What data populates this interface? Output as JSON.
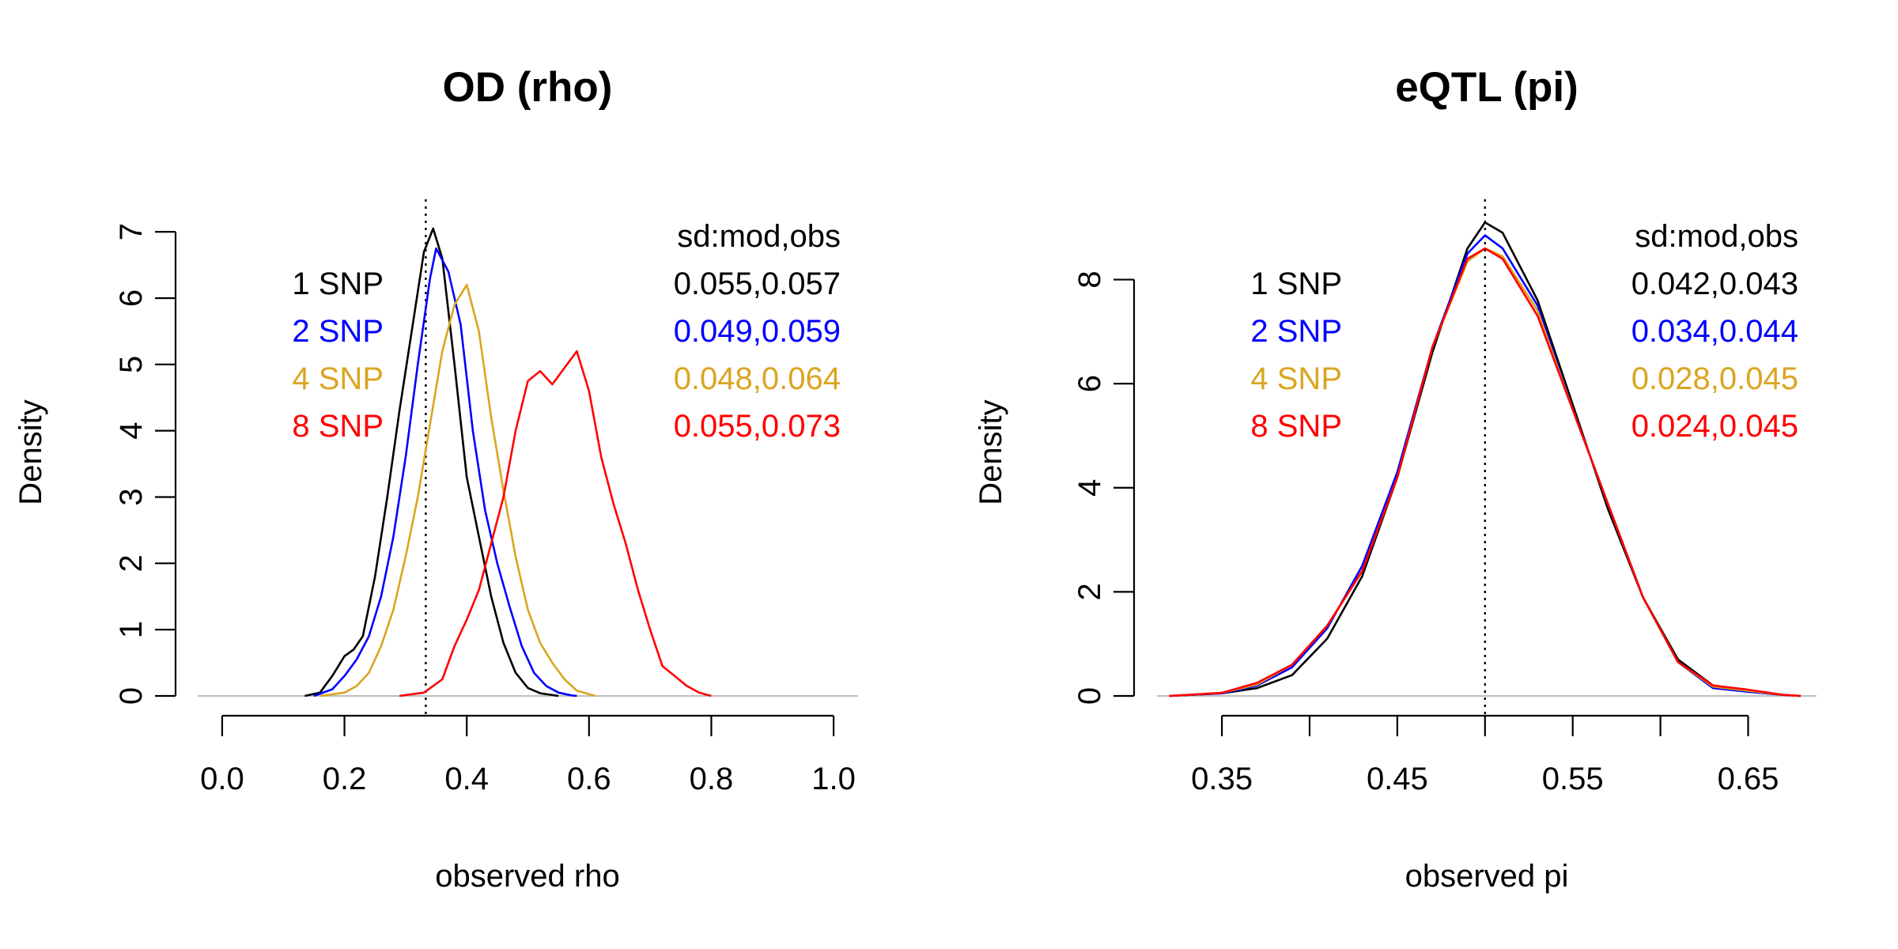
{
  "chart_data": [
    {
      "type": "line",
      "title": "OD (rho)",
      "xlabel": "observed rho",
      "ylabel": "Density",
      "xlim": [
        -0.04,
        1.04
      ],
      "ylim": [
        0,
        7.3
      ],
      "xticks": [
        0.0,
        0.2,
        0.4,
        0.6,
        0.8,
        1.0
      ],
      "xtick_labels": [
        "0.0",
        "0.2",
        "0.4",
        "0.6",
        "0.8",
        "1.0"
      ],
      "yticks": [
        0,
        1,
        2,
        3,
        4,
        5,
        6,
        7
      ],
      "ytick_labels": [
        "0",
        "1",
        "2",
        "3",
        "4",
        "5",
        "6",
        "7"
      ],
      "ref_line_x": 0.333,
      "legend_header": "sd:mod,obs",
      "series": [
        {
          "name": "1 SNP",
          "stat": "0.055,0.057",
          "color": "#000000",
          "x": [
            0.135,
            0.16,
            0.18,
            0.2,
            0.215,
            0.23,
            0.25,
            0.27,
            0.29,
            0.31,
            0.33,
            0.345,
            0.36,
            0.38,
            0.4,
            0.42,
            0.44,
            0.46,
            0.48,
            0.5,
            0.52,
            0.55
          ],
          "y": [
            0,
            0.05,
            0.3,
            0.6,
            0.7,
            0.9,
            1.8,
            3.0,
            4.3,
            5.5,
            6.7,
            7.05,
            6.6,
            5.0,
            3.3,
            2.4,
            1.5,
            0.8,
            0.35,
            0.12,
            0.04,
            0
          ]
        },
        {
          "name": "2 SNP",
          "stat": "0.049,0.059",
          "color": "#0000ff",
          "x": [
            0.15,
            0.18,
            0.2,
            0.22,
            0.24,
            0.26,
            0.28,
            0.3,
            0.32,
            0.34,
            0.35,
            0.37,
            0.39,
            0.41,
            0.43,
            0.45,
            0.47,
            0.49,
            0.51,
            0.53,
            0.55,
            0.57,
            0.58
          ],
          "y": [
            0,
            0.1,
            0.3,
            0.55,
            0.9,
            1.5,
            2.4,
            3.6,
            5.0,
            6.3,
            6.75,
            6.4,
            5.6,
            4.0,
            2.8,
            2.0,
            1.35,
            0.75,
            0.35,
            0.15,
            0.05,
            0.01,
            0
          ]
        },
        {
          "name": "4 SNP",
          "stat": "0.048,0.064",
          "color": "#daa520",
          "x": [
            0.16,
            0.2,
            0.22,
            0.24,
            0.26,
            0.28,
            0.3,
            0.32,
            0.34,
            0.36,
            0.38,
            0.4,
            0.42,
            0.44,
            0.46,
            0.48,
            0.5,
            0.52,
            0.54,
            0.56,
            0.58,
            0.61
          ],
          "y": [
            0,
            0.05,
            0.15,
            0.35,
            0.75,
            1.3,
            2.1,
            3.0,
            4.1,
            5.2,
            5.9,
            6.2,
            5.5,
            4.2,
            3.1,
            2.1,
            1.3,
            0.8,
            0.5,
            0.25,
            0.08,
            0
          ]
        },
        {
          "name": "8 SNP",
          "stat": "0.055,0.073",
          "color": "#ff0000",
          "x": [
            0.29,
            0.33,
            0.36,
            0.38,
            0.4,
            0.42,
            0.44,
            0.46,
            0.48,
            0.5,
            0.52,
            0.54,
            0.56,
            0.58,
            0.6,
            0.62,
            0.64,
            0.66,
            0.68,
            0.7,
            0.72,
            0.74,
            0.76,
            0.78,
            0.8
          ],
          "y": [
            0,
            0.05,
            0.25,
            0.75,
            1.15,
            1.6,
            2.3,
            3.0,
            4.0,
            4.75,
            4.9,
            4.7,
            4.95,
            5.2,
            4.6,
            3.6,
            2.9,
            2.3,
            1.6,
            1.0,
            0.45,
            0.3,
            0.15,
            0.05,
            0
          ]
        }
      ]
    },
    {
      "type": "line",
      "title": "eQTL (pi)",
      "xlabel": "observed pi",
      "ylabel": "Density",
      "xlim": [
        0.313,
        0.689
      ],
      "ylim": [
        0,
        9.3
      ],
      "xticks": [
        0.35,
        0.4,
        0.45,
        0.5,
        0.55,
        0.6,
        0.65
      ],
      "xtick_labels": [
        "0.35",
        "",
        "0.45",
        "",
        "0.55",
        "",
        "0.65"
      ],
      "yticks": [
        0,
        2,
        4,
        6,
        8
      ],
      "ytick_labels": [
        "0",
        "2",
        "4",
        "6",
        "8"
      ],
      "ref_line_x": 0.5,
      "legend_header": "sd:mod,obs",
      "series": [
        {
          "name": "1 SNP",
          "stat": "0.042,0.043",
          "color": "#000000",
          "x": [
            0.32,
            0.35,
            0.37,
            0.39,
            0.41,
            0.43,
            0.45,
            0.47,
            0.49,
            0.5,
            0.51,
            0.53,
            0.55,
            0.57,
            0.59,
            0.61,
            0.63,
            0.65,
            0.67,
            0.68
          ],
          "y": [
            0,
            0.05,
            0.15,
            0.4,
            1.1,
            2.3,
            4.2,
            6.6,
            8.6,
            9.1,
            8.9,
            7.6,
            5.6,
            3.6,
            1.9,
            0.7,
            0.2,
            0.08,
            0.02,
            0
          ]
        },
        {
          "name": "2 SNP",
          "stat": "0.034,0.044",
          "color": "#0000ff",
          "x": [
            0.32,
            0.35,
            0.37,
            0.39,
            0.41,
            0.43,
            0.45,
            0.47,
            0.49,
            0.5,
            0.51,
            0.53,
            0.55,
            0.57,
            0.59,
            0.61,
            0.63,
            0.65,
            0.67,
            0.68
          ],
          "y": [
            0,
            0.05,
            0.2,
            0.55,
            1.3,
            2.5,
            4.3,
            6.7,
            8.5,
            8.85,
            8.6,
            7.5,
            5.5,
            3.7,
            1.9,
            0.65,
            0.15,
            0.08,
            0.02,
            0
          ]
        },
        {
          "name": "4 SNP",
          "stat": "0.028,0.045",
          "color": "#daa520",
          "x": [
            0.32,
            0.35,
            0.37,
            0.39,
            0.41,
            0.43,
            0.45,
            0.47,
            0.49,
            0.5,
            0.51,
            0.53,
            0.55,
            0.57,
            0.59,
            0.61,
            0.63,
            0.65,
            0.67,
            0.68
          ],
          "y": [
            0,
            0.06,
            0.22,
            0.6,
            1.35,
            2.4,
            4.2,
            6.7,
            8.35,
            8.6,
            8.45,
            7.4,
            5.5,
            3.7,
            1.9,
            0.65,
            0.18,
            0.1,
            0.02,
            0
          ]
        },
        {
          "name": "8 SNP",
          "stat": "0.024,0.045",
          "color": "#ff0000",
          "x": [
            0.32,
            0.35,
            0.37,
            0.39,
            0.41,
            0.43,
            0.45,
            0.47,
            0.49,
            0.5,
            0.51,
            0.53,
            0.55,
            0.57,
            0.59,
            0.61,
            0.63,
            0.65,
            0.67,
            0.68
          ],
          "y": [
            0,
            0.06,
            0.25,
            0.6,
            1.35,
            2.4,
            4.2,
            6.7,
            8.4,
            8.6,
            8.4,
            7.3,
            5.5,
            3.7,
            1.9,
            0.65,
            0.2,
            0.12,
            0.02,
            0
          ]
        }
      ]
    }
  ]
}
